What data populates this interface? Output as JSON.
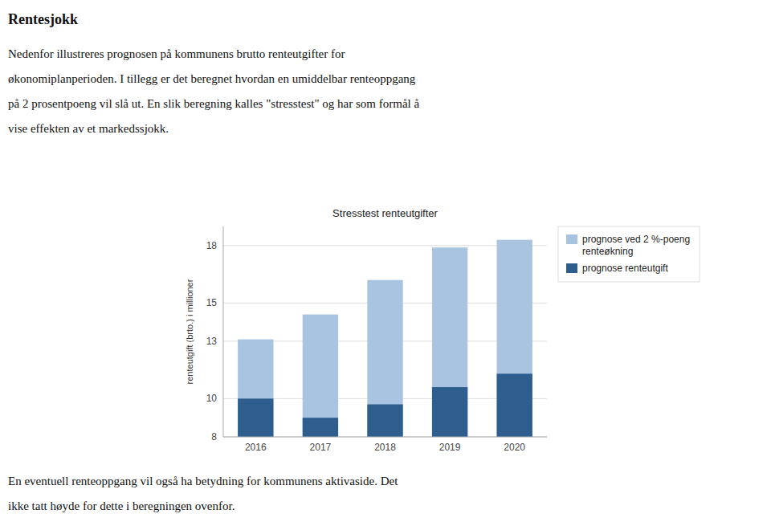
{
  "heading": "Rentesjokk",
  "text_lines": [
    "Nedenfor illustreres prognosen på kommunens brutto renteutgifter for",
    "økonomiplanperioden. I tillegg er det beregnet hvordan en umiddelbar renteoppgang",
    "på 2 prosentpoeng vil slå ut. En slik beregning kalles \"stresstest\" og har som formål å",
    "vise effekten av et markedssjokk."
  ],
  "footer_lines": [
    "En eventuell renteoppgang vil også ha betydning for kommunens aktivaside. Det",
    "ikke tatt høyde for dette i beregningen ovenfor."
  ],
  "chart_data": {
    "type": "bar",
    "title": "Stresstest renteutgifter",
    "ylabel": "renteutgift (brto.) i millioner",
    "categories": [
      "2016",
      "2017",
      "2018",
      "2019",
      "2020"
    ],
    "series": [
      {
        "name": "prognose ved 2 %-poeng\nrenteøkning",
        "color": "#A8C4E0",
        "values": [
          13.1,
          14.4,
          16.2,
          17.9,
          18.3
        ]
      },
      {
        "name": "prognose renteutgift",
        "color": "#2E5E8E",
        "values": [
          10.0,
          9.0,
          9.7,
          10.6,
          11.3
        ]
      }
    ],
    "ylim": [
      8,
      19
    ],
    "yticks": [
      8,
      10,
      13,
      15,
      18
    ],
    "grid": true,
    "legend": "right"
  }
}
